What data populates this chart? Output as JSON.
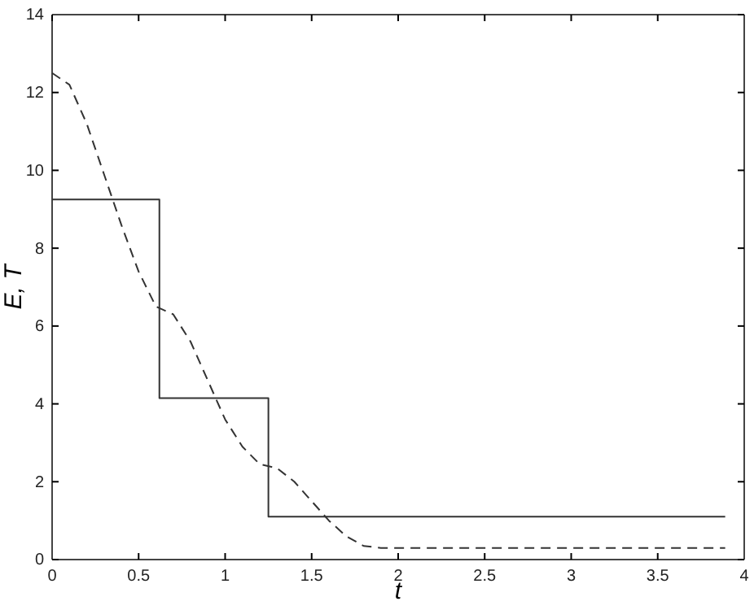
{
  "chart_data": {
    "type": "line",
    "xlabel": "t",
    "ylabel": "E, T",
    "xlim": [
      0,
      4
    ],
    "ylim": [
      0,
      14
    ],
    "xticks": [
      0,
      0.5,
      1,
      1.5,
      2,
      2.5,
      3,
      3.5,
      4
    ],
    "yticks": [
      0,
      2,
      4,
      6,
      8,
      10,
      12,
      14
    ],
    "grid": false,
    "marker": "none",
    "series": [
      {
        "type": "step",
        "color": "#333333",
        "line_style": "solid",
        "x": [
          0,
          0.62,
          1.25,
          3.89
        ],
        "values": [
          9.25,
          4.15,
          1.1,
          1.1
        ]
      },
      {
        "color": "#333333",
        "line_style": "dashed",
        "x": [
          0,
          0.1,
          0.2,
          0.3,
          0.4,
          0.5,
          0.6,
          0.7,
          0.8,
          0.9,
          1.0,
          1.1,
          1.2,
          1.3,
          1.4,
          1.5,
          1.6,
          1.7,
          1.8,
          1.9,
          2.0,
          3.89
        ],
        "values": [
          12.5,
          12.2,
          11.2,
          9.9,
          8.6,
          7.4,
          6.5,
          6.3,
          5.6,
          4.6,
          3.6,
          2.9,
          2.45,
          2.35,
          2.0,
          1.5,
          1.0,
          0.6,
          0.35,
          0.3,
          0.3,
          0.3
        ]
      }
    ]
  }
}
